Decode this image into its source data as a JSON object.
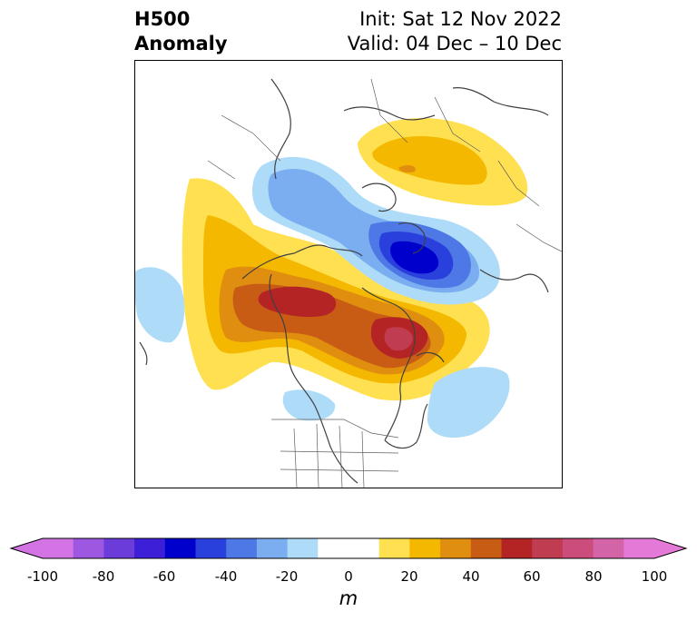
{
  "title": {
    "left_line1": "H500",
    "left_line2": "Anomaly",
    "right_line1": "Init: Sat 12 Nov 2022",
    "right_line2": "Valid: 04 Dec – 10 Dec"
  },
  "colorbar": {
    "unit": "m",
    "ticks": [
      "-100",
      "-80",
      "-60",
      "-40",
      "-20",
      "0",
      "20",
      "40",
      "60",
      "80",
      "100"
    ],
    "min": -100,
    "max": 100,
    "step": 10,
    "extend": "both",
    "colors": [
      "#d474e4",
      "#9e57e1",
      "#6c3cdb",
      "#3c1fd6",
      "#0000cc",
      "#2a40dc",
      "#4d78e6",
      "#7aaef0",
      "#aedcf8",
      "#ffffff",
      "#ffffff",
      "#ffe050",
      "#f4b800",
      "#e08e10",
      "#c85c14",
      "#b42424",
      "#c03c50",
      "#cc4c7c",
      "#d464a8",
      "#e479d8"
    ],
    "under_color": "#d474e4",
    "over_color": "#e479d8"
  },
  "map": {
    "projection": "polar-stereographic",
    "region": "northern hemisphere",
    "features": [
      "coastlines",
      "country borders",
      "state borders"
    ]
  }
}
